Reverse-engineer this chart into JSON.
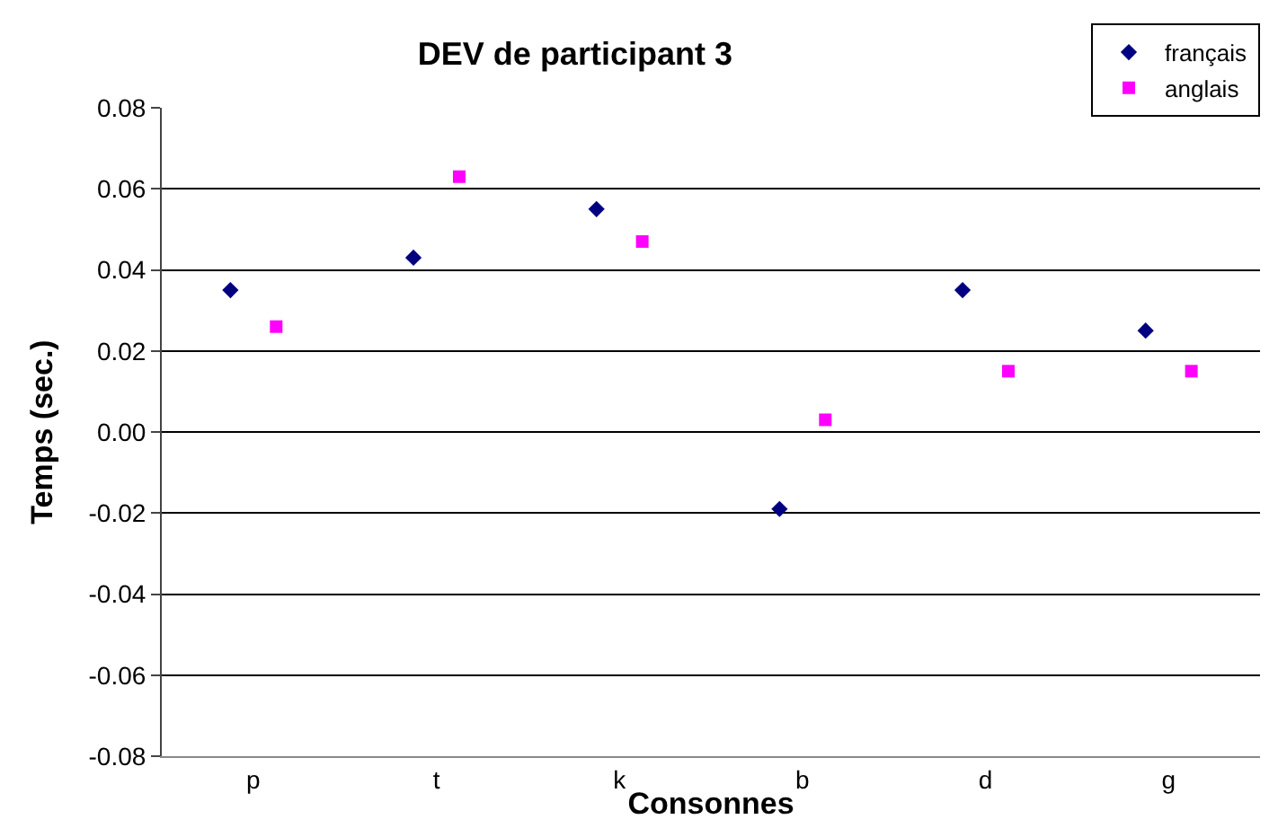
{
  "chart_data": {
    "type": "scatter",
    "title": "DEV de participant 3",
    "xlabel": "Consonnes",
    "ylabel": "Temps (sec.)",
    "categories": [
      "p",
      "t",
      "k",
      "b",
      "d",
      "g"
    ],
    "series": [
      {
        "name": "français",
        "color": "#000080",
        "marker": "diamond",
        "values": [
          0.035,
          0.043,
          0.055,
          -0.019,
          0.035,
          0.025
        ]
      },
      {
        "name": "anglais",
        "color": "#ff00ff",
        "marker": "square",
        "values": [
          0.026,
          0.063,
          0.047,
          0.003,
          0.015,
          0.015
        ]
      }
    ],
    "ylim": [
      -0.08,
      0.08
    ],
    "yticks": [
      {
        "value": -0.08,
        "label": "-0.08"
      },
      {
        "value": -0.06,
        "label": "-0.06"
      },
      {
        "value": -0.04,
        "label": "-0.04"
      },
      {
        "value": -0.02,
        "label": "-0.02"
      },
      {
        "value": 0,
        "label": "0.00"
      },
      {
        "value": 0.02,
        "label": "0.02"
      },
      {
        "value": 0.04,
        "label": "0.04"
      },
      {
        "value": 0.06,
        "label": "0.06"
      },
      {
        "value": 0.08,
        "label": "0.08"
      }
    ],
    "grid": "y",
    "legend": "top right"
  }
}
